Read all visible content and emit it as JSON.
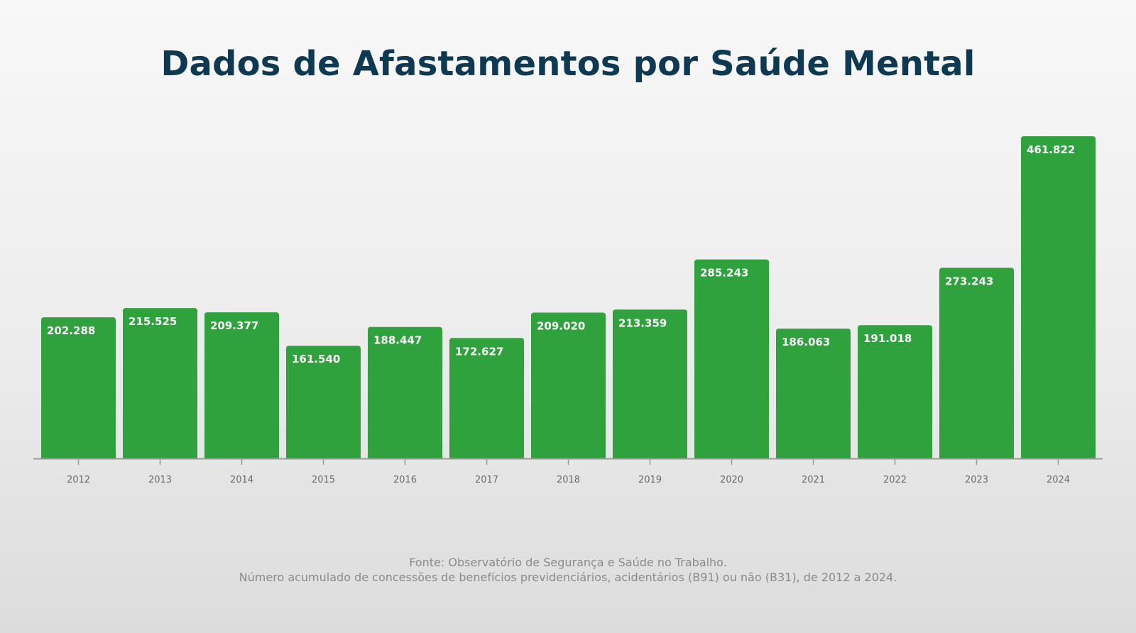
{
  "chart_data": {
    "type": "bar",
    "title": "Dados de Afastamentos por Saúde Mental",
    "categories": [
      "2012",
      "2013",
      "2014",
      "2015",
      "2016",
      "2017",
      "2018",
      "2019",
      "2020",
      "2021",
      "2022",
      "2023",
      "2024"
    ],
    "values": [
      202288,
      215525,
      209377,
      161540,
      188447,
      172627,
      209020,
      213359,
      285243,
      186063,
      191018,
      273243,
      461822
    ],
    "data_labels": [
      "202.288",
      "215.525",
      "209.377",
      "161.540",
      "188.447",
      "172.627",
      "209.020",
      "213.359",
      "285.243",
      "186.063",
      "191.018",
      "273.243",
      "461.822"
    ],
    "xlabel": "",
    "ylabel": "",
    "ylim": [
      0,
      461822
    ],
    "grid": false,
    "legend": "none",
    "bar_color": "#2fa23d",
    "label_color": "#ffffff",
    "axis_color": "#9a9a9a"
  },
  "source": {
    "line1": "Fonte: Observatório de Segurança e Saúde no Trabalho.",
    "line2": "Número acumulado de concessões de benefícios previdenciários, acidentários (B91) ou não (B31), de 2012 a 2024."
  },
  "colors": {
    "title": "#0d3a52",
    "source_text": "#8a8a8a"
  }
}
